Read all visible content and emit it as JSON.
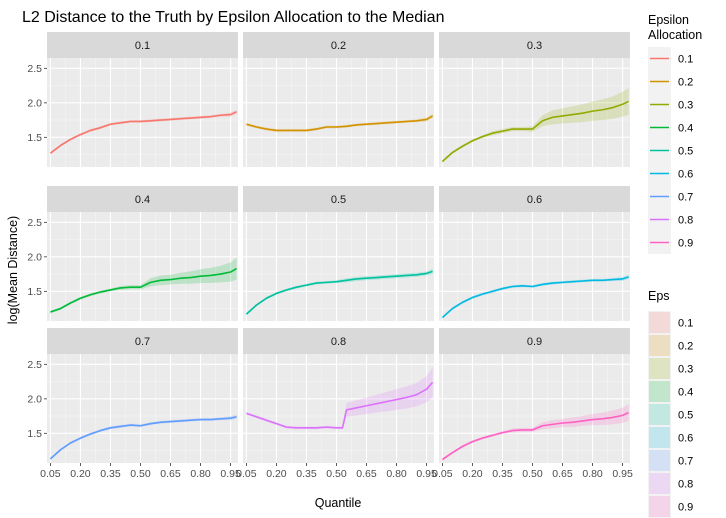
{
  "chart_data": {
    "type": "line",
    "title": "L2 Distance to the Truth by Epsilon Allocation to the Median",
    "xlabel": "Quantile",
    "ylabel": "log(Mean Distance)",
    "x_ticks": [
      "0.05",
      "0.20",
      "0.35",
      "0.50",
      "0.65",
      "0.80",
      "0.95"
    ],
    "x_tick_values": [
      0.05,
      0.2,
      0.35,
      0.5,
      0.65,
      0.8,
      0.95
    ],
    "xlim": [
      0.033,
      0.987
    ],
    "y_ticks": [
      "1.5",
      "2.0",
      "2.5"
    ],
    "y_tick_values": [
      1.5,
      2.0,
      2.5
    ],
    "ylim": [
      1.07,
      2.65
    ],
    "grid": true,
    "legend_color": {
      "title_line1": "Epsilon",
      "title_line2": "Allocation",
      "labels": [
        "0.1",
        "0.2",
        "0.3",
        "0.4",
        "0.5",
        "0.6",
        "0.7",
        "0.8",
        "0.9"
      ]
    },
    "legend_fill": {
      "title": "Eps",
      "labels": [
        "0.1",
        "0.2",
        "0.3",
        "0.4",
        "0.5",
        "0.6",
        "0.7",
        "0.8",
        "0.9"
      ]
    },
    "colors": [
      "#F8766D",
      "#D39200",
      "#93AA00",
      "#00BA38",
      "#00C19F",
      "#00B9E3",
      "#619CFF",
      "#DB72FB",
      "#FF61C3"
    ],
    "panels": [
      {
        "label": "0.1",
        "x": [
          0.05,
          0.1,
          0.15,
          0.2,
          0.25,
          0.3,
          0.35,
          0.4,
          0.45,
          0.5,
          0.55,
          0.6,
          0.65,
          0.7,
          0.75,
          0.8,
          0.85,
          0.9,
          0.95,
          0.98
        ],
        "y": [
          1.27,
          1.38,
          1.47,
          1.54,
          1.6,
          1.64,
          1.69,
          1.71,
          1.73,
          1.73,
          1.74,
          1.75,
          1.76,
          1.77,
          1.78,
          1.79,
          1.8,
          1.82,
          1.83,
          1.87
        ],
        "band": [
          0.02,
          0.02,
          0.02,
          0.02,
          0.02,
          0.02,
          0.02,
          0.02,
          0.02,
          0.02,
          0.02,
          0.02,
          0.02,
          0.02,
          0.02,
          0.02,
          0.02,
          0.02,
          0.03,
          0.03
        ]
      },
      {
        "label": "0.2",
        "x": [
          0.05,
          0.1,
          0.15,
          0.2,
          0.25,
          0.3,
          0.35,
          0.4,
          0.45,
          0.5,
          0.55,
          0.6,
          0.65,
          0.7,
          0.75,
          0.8,
          0.85,
          0.9,
          0.95,
          0.98
        ],
        "y": [
          1.69,
          1.65,
          1.62,
          1.6,
          1.6,
          1.6,
          1.6,
          1.62,
          1.65,
          1.65,
          1.66,
          1.68,
          1.69,
          1.7,
          1.71,
          1.72,
          1.73,
          1.74,
          1.76,
          1.81
        ],
        "band": [
          0.02,
          0.02,
          0.02,
          0.02,
          0.02,
          0.02,
          0.02,
          0.02,
          0.02,
          0.02,
          0.02,
          0.02,
          0.02,
          0.02,
          0.02,
          0.02,
          0.02,
          0.02,
          0.03,
          0.03
        ]
      },
      {
        "label": "0.3",
        "x": [
          0.05,
          0.1,
          0.15,
          0.2,
          0.25,
          0.3,
          0.35,
          0.4,
          0.45,
          0.5,
          0.55,
          0.6,
          0.65,
          0.7,
          0.75,
          0.8,
          0.85,
          0.9,
          0.95,
          0.98
        ],
        "y": [
          1.15,
          1.28,
          1.37,
          1.45,
          1.51,
          1.56,
          1.59,
          1.62,
          1.62,
          1.62,
          1.74,
          1.79,
          1.81,
          1.83,
          1.85,
          1.88,
          1.9,
          1.93,
          1.98,
          2.02
        ],
        "band": [
          0.02,
          0.02,
          0.02,
          0.02,
          0.02,
          0.03,
          0.03,
          0.03,
          0.03,
          0.04,
          0.08,
          0.1,
          0.11,
          0.12,
          0.13,
          0.14,
          0.15,
          0.16,
          0.18,
          0.19
        ]
      },
      {
        "label": "0.4",
        "x": [
          0.05,
          0.1,
          0.15,
          0.2,
          0.25,
          0.3,
          0.35,
          0.4,
          0.45,
          0.5,
          0.55,
          0.6,
          0.65,
          0.7,
          0.75,
          0.8,
          0.85,
          0.9,
          0.95,
          0.98
        ],
        "y": [
          1.2,
          1.25,
          1.33,
          1.4,
          1.45,
          1.49,
          1.52,
          1.55,
          1.56,
          1.56,
          1.63,
          1.66,
          1.67,
          1.69,
          1.7,
          1.72,
          1.73,
          1.75,
          1.78,
          1.83
        ],
        "band": [
          0.02,
          0.02,
          0.02,
          0.02,
          0.02,
          0.02,
          0.02,
          0.03,
          0.03,
          0.03,
          0.06,
          0.07,
          0.07,
          0.08,
          0.09,
          0.1,
          0.11,
          0.12,
          0.14,
          0.16
        ]
      },
      {
        "label": "0.5",
        "x": [
          0.05,
          0.1,
          0.15,
          0.2,
          0.25,
          0.3,
          0.35,
          0.4,
          0.45,
          0.5,
          0.55,
          0.6,
          0.65,
          0.7,
          0.75,
          0.8,
          0.85,
          0.9,
          0.95,
          0.98
        ],
        "y": [
          1.17,
          1.3,
          1.4,
          1.47,
          1.52,
          1.56,
          1.59,
          1.62,
          1.63,
          1.64,
          1.66,
          1.68,
          1.69,
          1.7,
          1.71,
          1.72,
          1.73,
          1.74,
          1.76,
          1.79
        ],
        "band": [
          0.02,
          0.02,
          0.02,
          0.02,
          0.02,
          0.02,
          0.02,
          0.02,
          0.02,
          0.02,
          0.03,
          0.03,
          0.03,
          0.03,
          0.03,
          0.03,
          0.03,
          0.03,
          0.03,
          0.04
        ]
      },
      {
        "label": "0.6",
        "x": [
          0.05,
          0.1,
          0.15,
          0.2,
          0.25,
          0.3,
          0.35,
          0.4,
          0.45,
          0.5,
          0.55,
          0.6,
          0.65,
          0.7,
          0.75,
          0.8,
          0.85,
          0.9,
          0.95,
          0.98
        ],
        "y": [
          1.12,
          1.25,
          1.34,
          1.41,
          1.46,
          1.5,
          1.54,
          1.57,
          1.58,
          1.57,
          1.6,
          1.62,
          1.63,
          1.64,
          1.65,
          1.66,
          1.66,
          1.67,
          1.68,
          1.71
        ],
        "band": [
          0.02,
          0.02,
          0.02,
          0.02,
          0.02,
          0.02,
          0.02,
          0.02,
          0.02,
          0.02,
          0.02,
          0.02,
          0.02,
          0.02,
          0.02,
          0.02,
          0.02,
          0.02,
          0.03,
          0.03
        ]
      },
      {
        "label": "0.7",
        "x": [
          0.05,
          0.1,
          0.15,
          0.2,
          0.25,
          0.3,
          0.35,
          0.4,
          0.45,
          0.5,
          0.55,
          0.6,
          0.65,
          0.7,
          0.75,
          0.8,
          0.85,
          0.9,
          0.95,
          0.98
        ],
        "y": [
          1.13,
          1.26,
          1.36,
          1.43,
          1.49,
          1.54,
          1.58,
          1.6,
          1.62,
          1.61,
          1.64,
          1.66,
          1.67,
          1.68,
          1.69,
          1.7,
          1.7,
          1.71,
          1.72,
          1.74
        ],
        "band": [
          0.02,
          0.02,
          0.02,
          0.02,
          0.02,
          0.02,
          0.02,
          0.02,
          0.02,
          0.02,
          0.02,
          0.02,
          0.02,
          0.02,
          0.02,
          0.02,
          0.02,
          0.02,
          0.03,
          0.03
        ]
      },
      {
        "label": "0.8",
        "x": [
          0.05,
          0.1,
          0.15,
          0.2,
          0.25,
          0.3,
          0.35,
          0.4,
          0.45,
          0.5,
          0.53,
          0.55,
          0.6,
          0.65,
          0.7,
          0.75,
          0.8,
          0.85,
          0.9,
          0.95,
          0.98
        ],
        "y": [
          1.79,
          1.74,
          1.69,
          1.64,
          1.59,
          1.58,
          1.58,
          1.58,
          1.59,
          1.58,
          1.58,
          1.84,
          1.87,
          1.9,
          1.93,
          1.96,
          1.99,
          2.02,
          2.06,
          2.14,
          2.24
        ],
        "band": [
          0.02,
          0.02,
          0.02,
          0.02,
          0.02,
          0.02,
          0.02,
          0.02,
          0.02,
          0.02,
          0.02,
          0.1,
          0.11,
          0.12,
          0.13,
          0.14,
          0.15,
          0.16,
          0.17,
          0.19,
          0.22
        ]
      },
      {
        "label": "0.9",
        "x": [
          0.05,
          0.1,
          0.15,
          0.2,
          0.25,
          0.3,
          0.35,
          0.4,
          0.45,
          0.5,
          0.55,
          0.6,
          0.65,
          0.7,
          0.75,
          0.8,
          0.85,
          0.9,
          0.95,
          0.98
        ],
        "y": [
          1.12,
          1.22,
          1.31,
          1.38,
          1.43,
          1.47,
          1.51,
          1.54,
          1.55,
          1.55,
          1.61,
          1.63,
          1.65,
          1.66,
          1.68,
          1.7,
          1.71,
          1.73,
          1.76,
          1.8
        ],
        "band": [
          0.02,
          0.02,
          0.02,
          0.02,
          0.02,
          0.02,
          0.02,
          0.03,
          0.03,
          0.03,
          0.05,
          0.06,
          0.06,
          0.07,
          0.07,
          0.08,
          0.09,
          0.1,
          0.11,
          0.12
        ]
      }
    ]
  }
}
